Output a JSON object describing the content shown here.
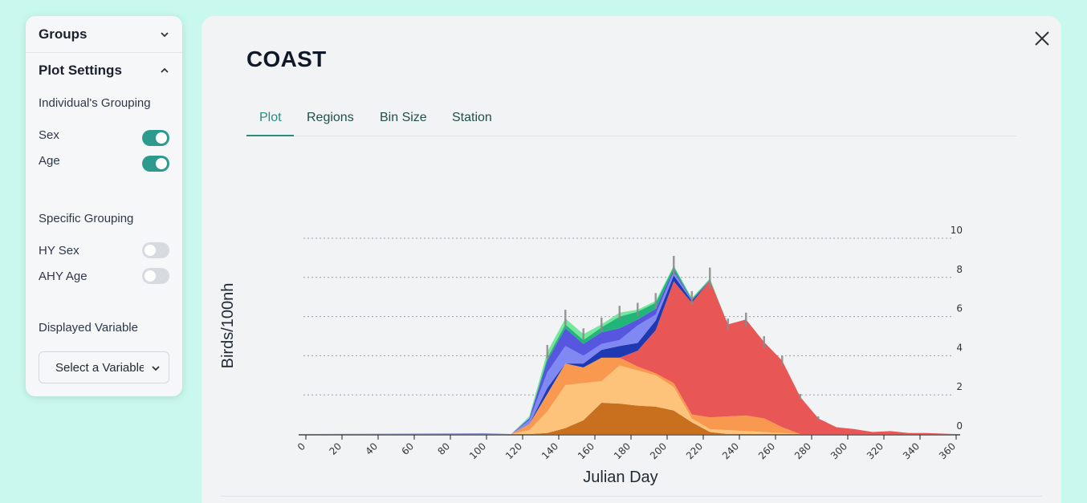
{
  "sidebar": {
    "groups_header": "Groups",
    "plot_settings_header": "Plot Settings",
    "individuals_grouping_label": "Individual's Grouping",
    "sex_label": "Sex",
    "sex_on": true,
    "age_label": "Age",
    "age_on": true,
    "specific_grouping_label": "Specific Grouping",
    "hy_sex_label": "HY Sex",
    "hy_sex_on": false,
    "ahy_age_label": "AHY Age",
    "ahy_age_on": false,
    "displayed_variable_label": "Displayed Variable",
    "select_placeholder": "Select a Variable"
  },
  "main": {
    "title": "COAST",
    "tabs": [
      "Plot",
      "Regions",
      "Bin Size",
      "Station"
    ],
    "active_tab": "Plot"
  },
  "chart_data": {
    "type": "area",
    "stacked": true,
    "xlabel": "Julian Day",
    "ylabel": "Birds/100nh",
    "xlim": [
      0,
      360
    ],
    "ylim": [
      0,
      10
    ],
    "x_ticks": [
      0,
      20,
      40,
      60,
      80,
      100,
      120,
      140,
      160,
      180,
      200,
      220,
      240,
      260,
      280,
      300,
      320,
      340,
      360
    ],
    "y_ticks": [
      0,
      2,
      4,
      6,
      8,
      10
    ],
    "grid": "horizontal dashed",
    "legend": "none",
    "x": [
      0,
      100,
      115,
      125,
      135,
      145,
      155,
      165,
      175,
      185,
      195,
      205,
      215,
      225,
      235,
      245,
      255,
      265,
      275,
      285,
      295,
      305,
      315,
      325,
      335,
      345,
      360
    ],
    "series": [
      {
        "color": "#c8701e",
        "values": [
          0,
          0,
          0,
          0,
          0.05,
          0.3,
          0.7,
          1.6,
          1.55,
          1.45,
          1.4,
          1.2,
          0.6,
          0.1,
          0,
          0,
          0,
          0,
          0,
          0,
          0,
          0,
          0,
          0,
          0,
          0,
          0
        ]
      },
      {
        "color": "#fdc37a",
        "values": [
          0,
          0,
          0,
          0.2,
          1.1,
          2.2,
          1.9,
          1.1,
          1.95,
          1.8,
          1.6,
          1.2,
          0.2,
          0.15,
          0.2,
          0.15,
          0.1,
          0.05,
          0,
          0,
          0,
          0,
          0,
          0,
          0,
          0,
          0
        ]
      },
      {
        "color": "#f9994f",
        "values": [
          0,
          0,
          0,
          0.3,
          0.9,
          1.1,
          0.8,
          1.2,
          0.4,
          0.2,
          0.1,
          0.2,
          0.2,
          0.6,
          0.7,
          0.8,
          0.7,
          0.3,
          0,
          0,
          0,
          0,
          0,
          0,
          0,
          0,
          0
        ]
      },
      {
        "color": "#e85656",
        "values": [
          0,
          0,
          0,
          0,
          0,
          0,
          0,
          0,
          0,
          0.8,
          2.2,
          5.2,
          5.7,
          7.0,
          4.7,
          4.9,
          3.9,
          3.4,
          1.9,
          0.8,
          0.35,
          0.25,
          0.1,
          0.15,
          0.05,
          0.05,
          0
        ]
      },
      {
        "color": "#1f39b2",
        "values": [
          0,
          0.02,
          0,
          0,
          0.3,
          0,
          0.2,
          0.4,
          0.6,
          0.4,
          0.5,
          0.3,
          0.1,
          0,
          0,
          0,
          0,
          0,
          0,
          0,
          0,
          0,
          0,
          0,
          0,
          0,
          0
        ]
      },
      {
        "color": "#8088f2",
        "values": [
          0,
          0,
          0,
          0.2,
          0.8,
          0.9,
          0.4,
          0.3,
          0.3,
          0.9,
          0.3,
          0.2,
          0,
          0,
          0,
          0,
          0,
          0,
          0,
          0,
          0,
          0,
          0,
          0,
          0,
          0,
          0
        ]
      },
      {
        "color": "#5656de",
        "values": [
          0,
          0,
          0,
          0.1,
          0.6,
          0.9,
          0.6,
          0.6,
          0.6,
          0.3,
          0.3,
          0.1,
          0.05,
          0,
          0,
          0,
          0,
          0,
          0,
          0,
          0,
          0,
          0,
          0,
          0,
          0,
          0
        ]
      },
      {
        "color": "#22b57a",
        "values": [
          0,
          0,
          0,
          0,
          0.15,
          0.2,
          0.2,
          0.25,
          0.6,
          0.4,
          0.3,
          0.15,
          0.05,
          0.05,
          0,
          0,
          0,
          0,
          0,
          0,
          0,
          0,
          0,
          0,
          0,
          0,
          0
        ]
      },
      {
        "color": "#74e79c",
        "values": [
          0,
          0,
          0,
          0.1,
          0.3,
          0.3,
          0.3,
          0.15,
          0.2,
          0.1,
          0.1,
          0.05,
          0.05,
          0.05,
          0,
          0,
          0,
          0,
          0,
          0,
          0,
          0,
          0,
          0,
          0,
          0,
          0
        ]
      }
    ],
    "error_bars": {
      "x": [
        135,
        145,
        155,
        165,
        175,
        185,
        195,
        205,
        215,
        225,
        235,
        245,
        255,
        265,
        275,
        285
      ],
      "half_width": [
        0.35,
        0.45,
        0.3,
        0.35,
        0.35,
        0.35,
        0.4,
        0.5,
        0.35,
        0.55,
        0.3,
        0.35,
        0.3,
        0.25,
        0.15,
        0.1
      ]
    }
  }
}
